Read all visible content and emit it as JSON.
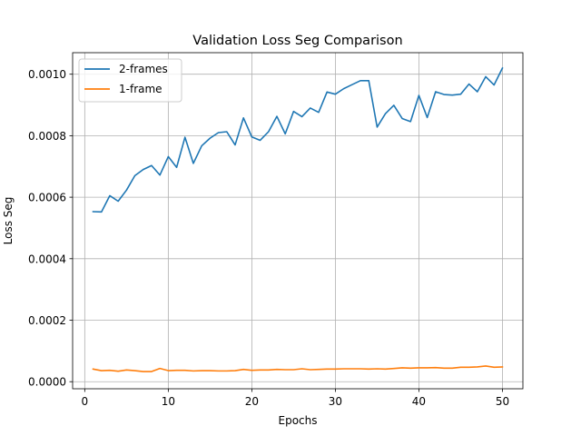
{
  "chart_data": {
    "type": "line",
    "title": "Validation Loss Seg Comparison",
    "xlabel": "Epochs",
    "ylabel": "Loss Seg",
    "xlim": [
      -1.45,
      52.45
    ],
    "ylim": [
      -2.3e-05,
      0.00107
    ],
    "xticks": [
      0,
      10,
      20,
      30,
      40,
      50
    ],
    "xtick_labels": [
      "0",
      "10",
      "20",
      "30",
      "40",
      "50"
    ],
    "yticks": [
      0.0,
      0.0002,
      0.0004,
      0.0006,
      0.0008,
      0.001
    ],
    "ytick_labels": [
      "0.0000",
      "0.0002",
      "0.0004",
      "0.0006",
      "0.0008",
      "0.0010"
    ],
    "grid": true,
    "legend_position": "top-left",
    "x": [
      1,
      2,
      3,
      4,
      5,
      6,
      7,
      8,
      9,
      10,
      11,
      12,
      13,
      14,
      15,
      16,
      17,
      18,
      19,
      20,
      21,
      22,
      23,
      24,
      25,
      26,
      27,
      28,
      29,
      30,
      31,
      32,
      33,
      34,
      35,
      36,
      37,
      38,
      39,
      40,
      41,
      42,
      43,
      44,
      45,
      46,
      47,
      48,
      49,
      50
    ],
    "series": [
      {
        "name": "2-frames",
        "color": "#1f77b4",
        "values": [
          0.000553,
          0.000552,
          0.000605,
          0.000587,
          0.000623,
          0.00067,
          0.00069,
          0.000703,
          0.000672,
          0.000732,
          0.000697,
          0.000795,
          0.00071,
          0.000767,
          0.000792,
          0.00081,
          0.000813,
          0.00077,
          0.000858,
          0.000796,
          0.000785,
          0.000813,
          0.000863,
          0.000806,
          0.000879,
          0.000862,
          0.00089,
          0.000876,
          0.000942,
          0.000935,
          0.000953,
          0.000966,
          0.000979,
          0.000979,
          0.000828,
          0.000872,
          0.000899,
          0.000856,
          0.000846,
          0.000931,
          0.000859,
          0.000943,
          0.000934,
          0.000932,
          0.000935,
          0.000968,
          0.000943,
          0.000992,
          0.000965,
          0.00102
        ]
      },
      {
        "name": "1-frame",
        "color": "#ff7f0e",
        "values": [
          4.1e-05,
          3.6e-05,
          3.7e-05,
          3.4e-05,
          3.8e-05,
          3.6e-05,
          3.3e-05,
          3.3e-05,
          4.3e-05,
          3.6e-05,
          3.7e-05,
          3.7e-05,
          3.5e-05,
          3.6e-05,
          3.6e-05,
          3.5e-05,
          3.5e-05,
          3.6e-05,
          4e-05,
          3.7e-05,
          3.8e-05,
          3.8e-05,
          4e-05,
          3.9e-05,
          3.9e-05,
          4.2e-05,
          3.9e-05,
          4e-05,
          4.1e-05,
          4.1e-05,
          4.2e-05,
          4.2e-05,
          4.2e-05,
          4.1e-05,
          4.2e-05,
          4.1e-05,
          4.3e-05,
          4.5e-05,
          4.4e-05,
          4.5e-05,
          4.5e-05,
          4.6e-05,
          4.4e-05,
          4.4e-05,
          4.7e-05,
          4.7e-05,
          4.8e-05,
          5.1e-05,
          4.7e-05,
          4.8e-05
        ]
      }
    ]
  }
}
